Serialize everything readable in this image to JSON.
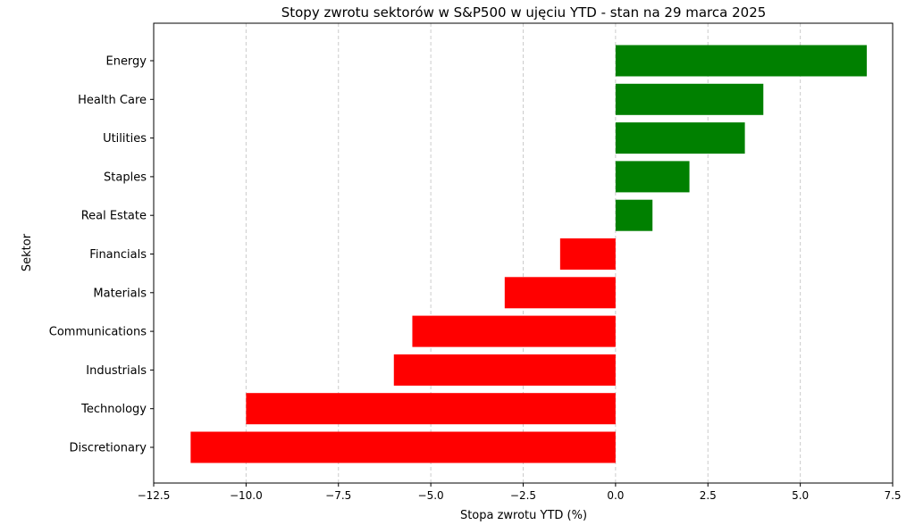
{
  "chart_data": {
    "type": "bar",
    "orientation": "horizontal",
    "title": "Stopy zwrotu sektorów w S&P500 w ujęciu YTD - stan na 29 marca 2025",
    "xlabel": "Stopa zwrotu YTD (%)",
    "ylabel": "Sektor",
    "categories": [
      "Energy",
      "Health Care",
      "Utilities",
      "Staples",
      "Real Estate",
      "Financials",
      "Materials",
      "Communications",
      "Industrials",
      "Technology",
      "Discretionary"
    ],
    "values": [
      6.8,
      4.0,
      3.5,
      2.0,
      1.0,
      -1.5,
      -3.0,
      -5.5,
      -6.0,
      -10.0,
      -11.5
    ],
    "xlim": [
      -12.5,
      7.5
    ],
    "xticks": [
      -12.5,
      -10.0,
      -7.5,
      -5.0,
      -2.5,
      0.0,
      2.5,
      5.0,
      7.5
    ],
    "xtick_labels": [
      "−12.5",
      "−10.0",
      "−7.5",
      "−5.0",
      "−2.5",
      "0.0",
      "2.5",
      "5.0",
      "7.5"
    ],
    "grid": "x, dashed",
    "colors": {
      "positive": "#008000",
      "negative": "#ff0000"
    }
  }
}
